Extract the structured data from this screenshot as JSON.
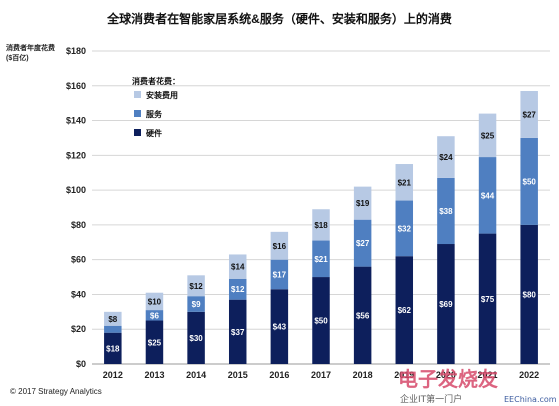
{
  "chart_data": {
    "type": "bar",
    "stacked": true,
    "title": "全球消费者在智能家居系统&服务（硬件、安装和服务）上的消费",
    "ylabel": "消费者年度花费 ($百亿)",
    "xlabel": "",
    "categories": [
      "2012",
      "2013",
      "2014",
      "2015",
      "2016",
      "2017",
      "2018",
      "2019",
      "2020",
      "2021",
      "2022"
    ],
    "ylim": [
      0,
      180
    ],
    "yticks": [
      "$0",
      "$20",
      "$40",
      "$60",
      "$80",
      "$100",
      "$120",
      "$140",
      "$160",
      "$180"
    ],
    "legend_title": "消费者花费：",
    "legend_position": "top-left",
    "series": [
      {
        "name": "硬件",
        "color": "#0d1f5c",
        "label_color": "#ffffff",
        "values": [
          18,
          25,
          30,
          37,
          43,
          50,
          56,
          62,
          69,
          75,
          80
        ],
        "labels": [
          "$18",
          "$25",
          "$30",
          "$37",
          "$43",
          "$50",
          "$56",
          "$62",
          "$69",
          "$75",
          "$80"
        ]
      },
      {
        "name": "服务",
        "color": "#4f7fc1",
        "label_color": "#ffffff",
        "values": [
          4,
          6,
          9,
          12,
          17,
          21,
          27,
          32,
          38,
          44,
          50
        ],
        "labels": [
          "",
          "$6",
          "$9",
          "$12",
          "$17",
          "$21",
          "$27",
          "$32",
          "$38",
          "$44",
          "$50"
        ]
      },
      {
        "name": "安装费用",
        "color": "#b7c9e4",
        "label_color": "#111111",
        "values": [
          8,
          10,
          12,
          14,
          16,
          18,
          19,
          21,
          24,
          25,
          27
        ],
        "labels": [
          "$8",
          "$10",
          "$12",
          "$14",
          "$16",
          "$18",
          "$19",
          "$21",
          "$24",
          "$25",
          "$27"
        ]
      }
    ],
    "grid": true
  },
  "footer": {
    "copyright": "© 2017 Strategy Analytics"
  },
  "watermark": {
    "logo_text": "电子发烧友",
    "sub_text": "企业IT第一门户",
    "url": "EEChina.com"
  }
}
